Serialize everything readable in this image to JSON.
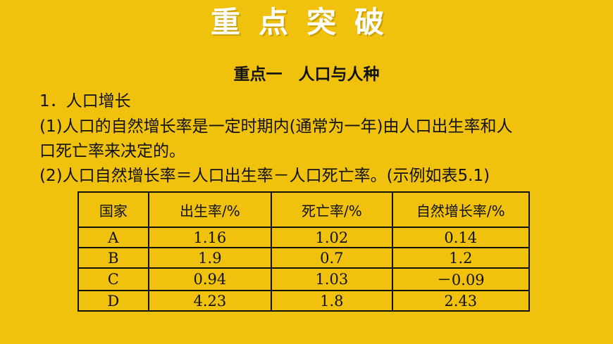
{
  "banner": {
    "title": "重点突破"
  },
  "subtitle": "重点一　人口与人种",
  "lines": [
    "1．人口增长",
    "(1)人口的自然增长率是一定时期内(通常为一年)由人口出生率和人",
    "口死亡率来决定的。",
    "(2)人口自然增长率＝人口出生率－人口死亡率。(示例如表5.1)"
  ],
  "table": {
    "headers": [
      "国家",
      "出生率/%",
      "死亡率/%",
      "自然增长率/%"
    ],
    "rows": [
      [
        "A",
        "1.16",
        "1.02",
        "0.14"
      ],
      [
        "B",
        "1.9",
        "0.7",
        "1.2"
      ],
      [
        "C",
        "0.94",
        "1.03",
        "－0.09"
      ],
      [
        "D",
        "4.23",
        "1.8",
        "2.43"
      ]
    ]
  },
  "colors": {
    "background": "#f0c20d",
    "banner_text": "#ffffff",
    "text": "#111111"
  }
}
